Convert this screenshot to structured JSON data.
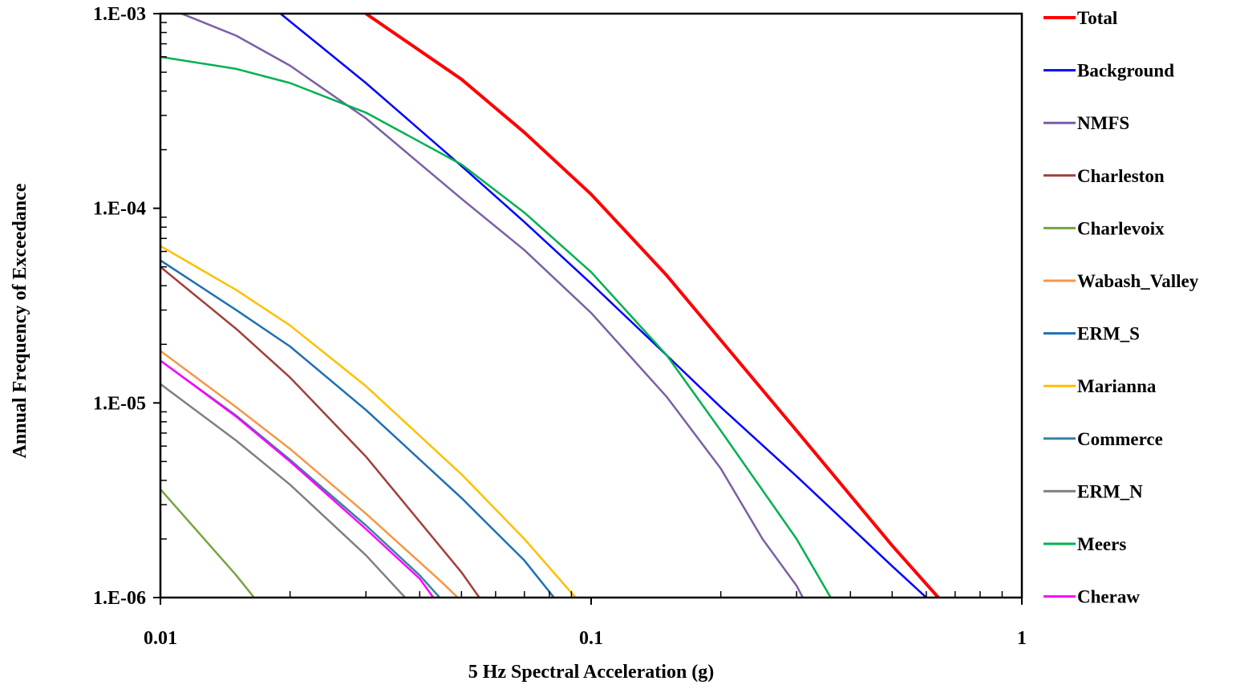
{
  "chart_data": {
    "type": "line",
    "xscale": "log",
    "yscale": "log",
    "xlabel": "5 Hz Spectral Acceleration (g)",
    "ylabel": "Annual Frequency of Exceedance",
    "xlim": [
      0.01,
      1
    ],
    "ylim": [
      1e-06,
      0.001
    ],
    "x_ticks": [
      {
        "value": 0.01,
        "label": "0.01"
      },
      {
        "value": 0.1,
        "label": "0.1"
      },
      {
        "value": 1,
        "label": "1"
      }
    ],
    "y_ticks": [
      {
        "value": 1e-06,
        "label": "1.E-06"
      },
      {
        "value": 1e-05,
        "label": "1.E-05"
      },
      {
        "value": 0.0001,
        "label": "1.E-04"
      },
      {
        "value": 0.001,
        "label": "1.E-03"
      }
    ],
    "grid": false,
    "legend_position": "right",
    "series": [
      {
        "name": "Total",
        "color": "#ff0000",
        "width": 4,
        "points": [
          [
            0.03,
            0.001
          ],
          [
            0.05,
            0.00046
          ],
          [
            0.07,
            0.000245
          ],
          [
            0.1,
            0.000118
          ],
          [
            0.15,
            4.5e-05
          ],
          [
            0.2,
            2.1e-05
          ],
          [
            0.3,
            7.2e-06
          ],
          [
            0.5,
            1.85e-06
          ],
          [
            0.64,
            1e-06
          ]
        ]
      },
      {
        "name": "Background",
        "color": "#0000ff",
        "width": 2.5,
        "points": [
          [
            0.019,
            0.001
          ],
          [
            0.03,
            0.00044
          ],
          [
            0.05,
            0.000165
          ],
          [
            0.07,
            8.5e-05
          ],
          [
            0.1,
            4.1e-05
          ],
          [
            0.15,
            1.75e-05
          ],
          [
            0.2,
            9.5e-06
          ],
          [
            0.3,
            4.2e-06
          ],
          [
            0.5,
            1.45e-06
          ],
          [
            0.6,
            1e-06
          ]
        ]
      },
      {
        "name": "NMFS",
        "color": "#7b5fa6",
        "width": 2.5,
        "points": [
          [
            0.0112,
            0.001
          ],
          [
            0.015,
            0.00077
          ],
          [
            0.02,
            0.00054
          ],
          [
            0.03,
            0.00029
          ],
          [
            0.05,
            0.000112
          ],
          [
            0.07,
            6.1e-05
          ],
          [
            0.1,
            2.9e-05
          ],
          [
            0.15,
            1.07e-05
          ],
          [
            0.2,
            4.6e-06
          ],
          [
            0.25,
            2e-06
          ],
          [
            0.3,
            1.15e-06
          ],
          [
            0.31,
            1e-06
          ]
        ]
      },
      {
        "name": "Charleston",
        "color": "#a0403a",
        "width": 2.5,
        "points": [
          [
            0.01,
            5e-05
          ],
          [
            0.015,
            2.4e-05
          ],
          [
            0.02,
            1.35e-05
          ],
          [
            0.03,
            5.3e-06
          ],
          [
            0.05,
            1.35e-06
          ],
          [
            0.055,
            1e-06
          ]
        ]
      },
      {
        "name": "Charlevoix",
        "color": "#77a340",
        "width": 2.5,
        "points": [
          [
            0.01,
            3.6e-06
          ],
          [
            0.015,
            1.3e-06
          ],
          [
            0.0165,
            1e-06
          ]
        ]
      },
      {
        "name": "Wabash_Valley",
        "color": "#f79646",
        "width": 2.5,
        "points": [
          [
            0.01,
            1.85e-05
          ],
          [
            0.015,
            9.5e-06
          ],
          [
            0.02,
            5.8e-06
          ],
          [
            0.03,
            2.7e-06
          ],
          [
            0.045,
            1.2e-06
          ],
          [
            0.049,
            1e-06
          ]
        ]
      },
      {
        "name": "ERM_S",
        "color": "#1f6fb5",
        "width": 2.5,
        "points": [
          [
            0.01,
            5.4e-05
          ],
          [
            0.015,
            3e-05
          ],
          [
            0.02,
            1.95e-05
          ],
          [
            0.03,
            9.2e-06
          ],
          [
            0.05,
            3.25e-06
          ],
          [
            0.07,
            1.55e-06
          ],
          [
            0.082,
            1e-06
          ]
        ]
      },
      {
        "name": "Marianna",
        "color": "#ffc000",
        "width": 2.5,
        "points": [
          [
            0.01,
            6.4e-05
          ],
          [
            0.015,
            3.8e-05
          ],
          [
            0.02,
            2.5e-05
          ],
          [
            0.03,
            1.22e-05
          ],
          [
            0.05,
            4.3e-06
          ],
          [
            0.07,
            2e-06
          ],
          [
            0.092,
            1e-06
          ]
        ]
      },
      {
        "name": "Commerce",
        "color": "#31859c",
        "width": 2.5,
        "points": [
          [
            0.01,
            1.65e-05
          ],
          [
            0.015,
            8.6e-06
          ],
          [
            0.02,
            5.1e-06
          ],
          [
            0.03,
            2.35e-06
          ],
          [
            0.04,
            1.3e-06
          ],
          [
            0.0445,
            1e-06
          ]
        ]
      },
      {
        "name": "ERM_N",
        "color": "#808080",
        "width": 2.5,
        "points": [
          [
            0.01,
            1.25e-05
          ],
          [
            0.015,
            6.4e-06
          ],
          [
            0.02,
            3.8e-06
          ],
          [
            0.03,
            1.65e-06
          ],
          [
            0.037,
            1e-06
          ]
        ]
      },
      {
        "name": "Meers",
        "color": "#00b050",
        "width": 2.5,
        "points": [
          [
            0.01,
            0.0006
          ],
          [
            0.015,
            0.00052
          ],
          [
            0.02,
            0.00044
          ],
          [
            0.03,
            0.00031
          ],
          [
            0.05,
            0.000168
          ],
          [
            0.07,
            9.5e-05
          ],
          [
            0.1,
            4.7e-05
          ],
          [
            0.15,
            1.75e-05
          ],
          [
            0.2,
            7.2e-06
          ],
          [
            0.3,
            2e-06
          ],
          [
            0.36,
            1e-06
          ]
        ]
      },
      {
        "name": "Cheraw",
        "color": "#ff00ff",
        "width": 2.5,
        "points": [
          [
            0.01,
            1.65e-05
          ],
          [
            0.015,
            8.5e-06
          ],
          [
            0.02,
            5e-06
          ],
          [
            0.03,
            2.25e-06
          ],
          [
            0.04,
            1.25e-06
          ],
          [
            0.043,
            1e-06
          ]
        ]
      }
    ]
  }
}
